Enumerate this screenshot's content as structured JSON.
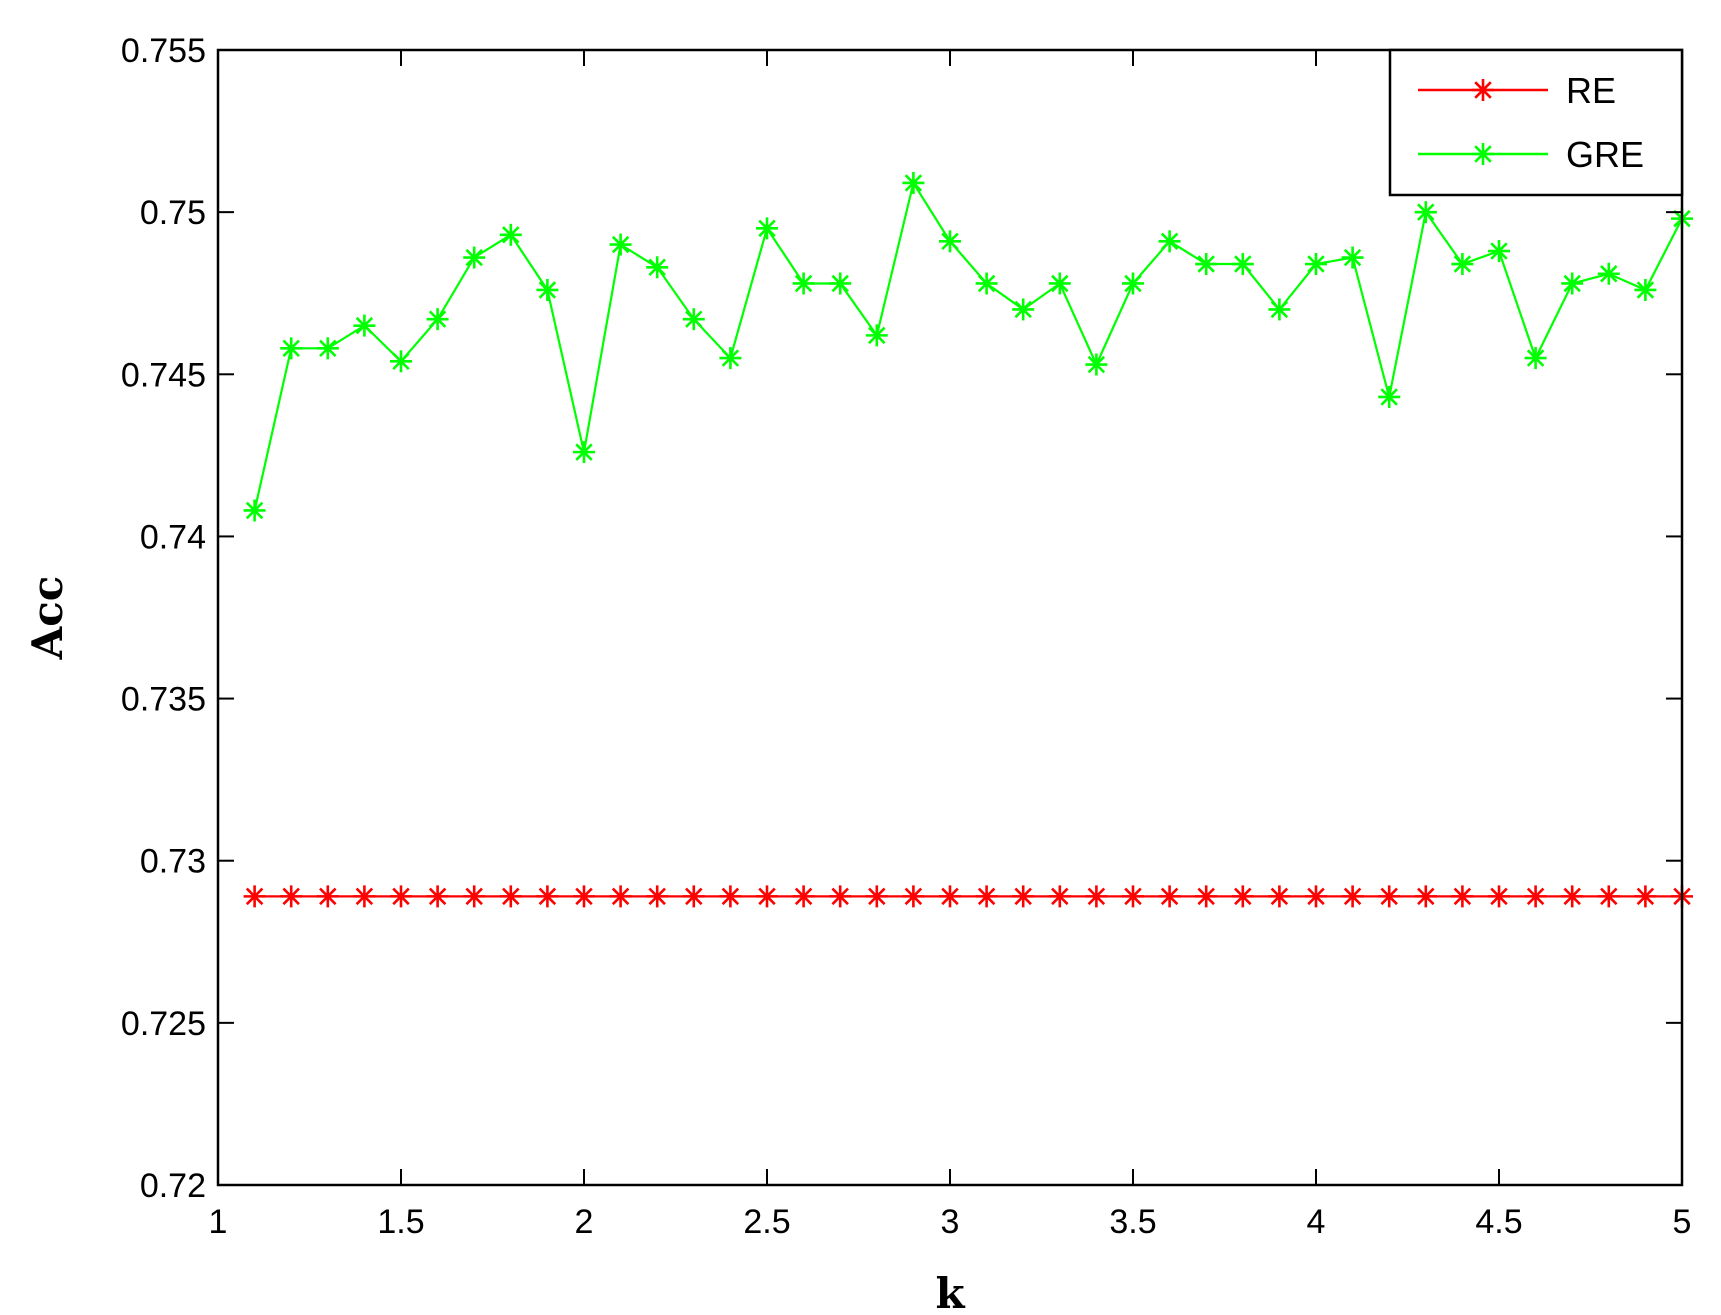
{
  "chart_data": {
    "type": "line",
    "title": "",
    "xlabel": "k",
    "ylabel": "Acc",
    "xlim": [
      1,
      5
    ],
    "ylim": [
      0.72,
      0.755
    ],
    "xticks": [
      "1",
      "1.5",
      "2",
      "2.5",
      "3",
      "3.5",
      "4",
      "4.5",
      "5"
    ],
    "yticks": [
      "0.72",
      "0.725",
      "0.73",
      "0.735",
      "0.74",
      "0.745",
      "0.75",
      "0.755"
    ],
    "grid": false,
    "legend": "top-right",
    "x": [
      1.1,
      1.2,
      1.3,
      1.4,
      1.5,
      1.6,
      1.7,
      1.8,
      1.9,
      2.0,
      2.1,
      2.2,
      2.3,
      2.4,
      2.5,
      2.6,
      2.7,
      2.8,
      2.9,
      3.0,
      3.1,
      3.2,
      3.3,
      3.4,
      3.5,
      3.6,
      3.7,
      3.8,
      3.9,
      4.0,
      4.1,
      4.2,
      4.3,
      4.4,
      4.5,
      4.6,
      4.7,
      4.8,
      4.9,
      5.0
    ],
    "series": [
      {
        "name": "RE",
        "color": "#ff0000",
        "marker": "asterisk",
        "values": [
          0.7289,
          0.7289,
          0.7289,
          0.7289,
          0.7289,
          0.7289,
          0.7289,
          0.7289,
          0.7289,
          0.7289,
          0.7289,
          0.7289,
          0.7289,
          0.7289,
          0.7289,
          0.7289,
          0.7289,
          0.7289,
          0.7289,
          0.7289,
          0.7289,
          0.7289,
          0.7289,
          0.7289,
          0.7289,
          0.7289,
          0.7289,
          0.7289,
          0.7289,
          0.7289,
          0.7289,
          0.7289,
          0.7289,
          0.7289,
          0.7289,
          0.7289,
          0.7289,
          0.7289,
          0.7289,
          0.7289
        ]
      },
      {
        "name": "GRE",
        "color": "#00ff00",
        "marker": "asterisk",
        "values": [
          0.7408,
          0.7458,
          0.7458,
          0.7465,
          0.7454,
          0.7467,
          0.7486,
          0.7493,
          0.7476,
          0.7426,
          0.749,
          0.7483,
          0.7467,
          0.7455,
          0.7495,
          0.7478,
          0.7478,
          0.7462,
          0.7509,
          0.7491,
          0.7478,
          0.747,
          0.7478,
          0.7453,
          0.7478,
          0.7491,
          0.7484,
          0.7484,
          0.747,
          0.7484,
          0.7486,
          0.7443,
          0.75,
          0.7484,
          0.7488,
          0.7455,
          0.7478,
          0.7481,
          0.7476,
          0.7498
        ]
      }
    ]
  }
}
